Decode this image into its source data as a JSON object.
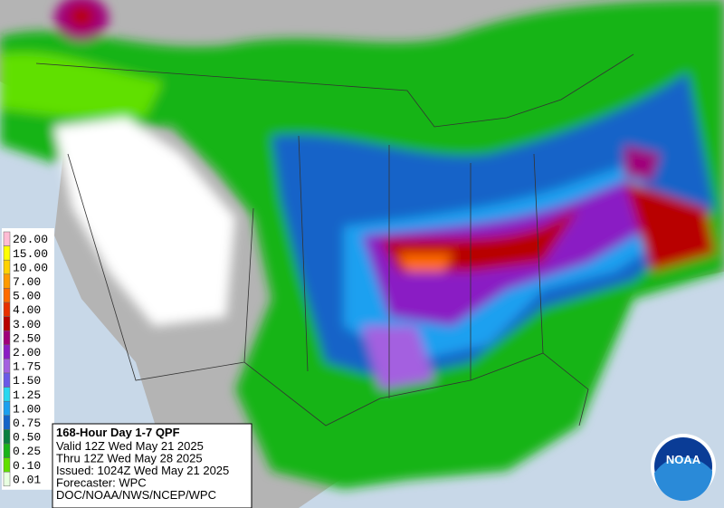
{
  "legend": {
    "levels": [
      {
        "label": "20.00",
        "color": "#ffbcd4"
      },
      {
        "label": "15.00",
        "color": "#ffff00"
      },
      {
        "label": "10.00",
        "color": "#ffd200"
      },
      {
        "label": "7.00",
        "color": "#ff9a00"
      },
      {
        "label": "5.00",
        "color": "#ff6a00"
      },
      {
        "label": "4.00",
        "color": "#e83000"
      },
      {
        "label": "3.00",
        "color": "#b80000"
      },
      {
        "label": "2.50",
        "color": "#a0007a"
      },
      {
        "label": "2.00",
        "color": "#8a1ec4"
      },
      {
        "label": "1.75",
        "color": "#a460e0"
      },
      {
        "label": "1.50",
        "color": "#6a5ae8"
      },
      {
        "label": "1.25",
        "color": "#28d8f0"
      },
      {
        "label": "1.00",
        "color": "#1ca0f0"
      },
      {
        "label": "0.75",
        "color": "#1464c8"
      },
      {
        "label": "0.50",
        "color": "#0a8040"
      },
      {
        "label": "0.25",
        "color": "#18b418"
      },
      {
        "label": "0.10",
        "color": "#60e000"
      },
      {
        "label": "0.01",
        "color": "#e8ffe0"
      }
    ]
  },
  "info": {
    "title": "168-Hour Day 1-7 QPF",
    "lines": [
      "Valid 12Z Wed May 21 2025",
      "Thru 12Z Wed May 28 2025",
      "Issued: 1024Z Wed May 21 2025",
      "Forecaster: WPC",
      "DOC/NOAA/NWS/NCEP/WPC"
    ]
  },
  "logo": "NOAA"
}
